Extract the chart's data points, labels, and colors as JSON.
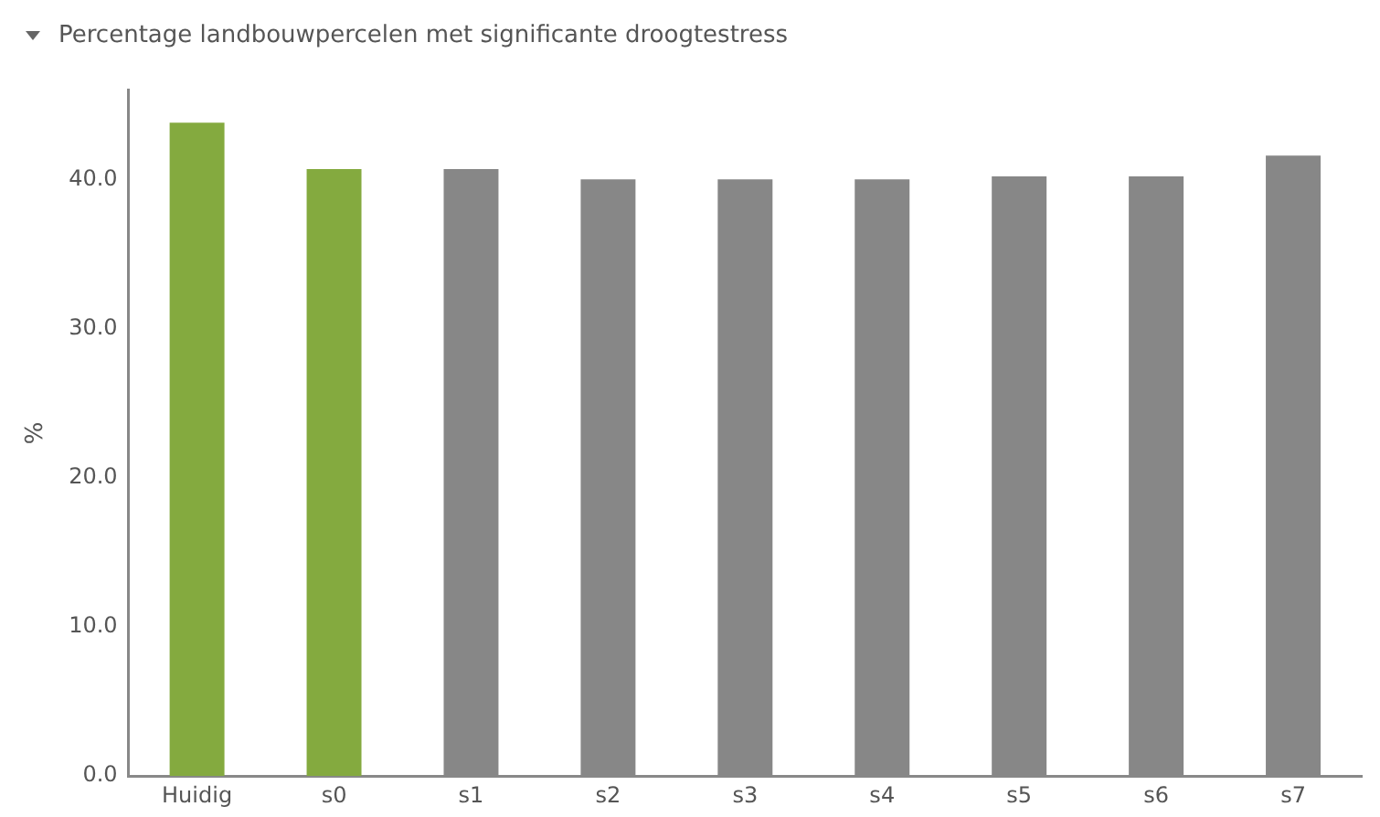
{
  "chart_data": {
    "type": "bar",
    "title": "Percentage landbouwpercelen met significante droogtestress",
    "ylabel": "%",
    "categories": [
      "Huidig",
      "s0",
      "s1",
      "s2",
      "s3",
      "s4",
      "s5",
      "s6",
      "s7"
    ],
    "values": [
      43.8,
      40.7,
      40.7,
      40.0,
      40.0,
      40.0,
      40.2,
      40.2,
      41.6
    ],
    "colors": [
      "#84aa3f",
      "#84aa3f",
      "#878787",
      "#878787",
      "#878787",
      "#878787",
      "#878787",
      "#878787",
      "#878787"
    ],
    "ylim": [
      0,
      46
    ],
    "yticks": [
      {
        "value": 0,
        "label": "0.0"
      },
      {
        "value": 10,
        "label": "10.0"
      },
      {
        "value": 20,
        "label": "20.0"
      },
      {
        "value": 30,
        "label": "30.0"
      },
      {
        "value": 40,
        "label": "40.0"
      }
    ],
    "grid": false,
    "legend": false
  }
}
